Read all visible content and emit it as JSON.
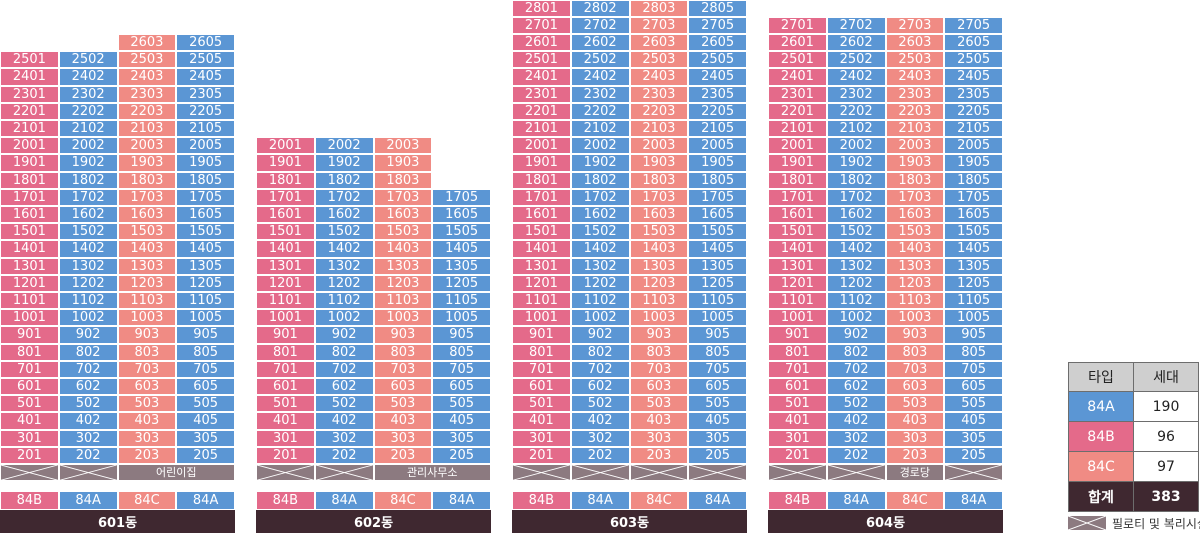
{
  "colors": {
    "84A": "#5b96d4",
    "84B": "#e46a8a",
    "84C": "#f08b84",
    "pilotis": "#8c7a80",
    "name_bar": "#3f2830"
  },
  "buildings": [
    {
      "id": "601",
      "name": "601동",
      "types": [
        "84B",
        "84A",
        "84C",
        "84A"
      ],
      "columns": [
        {
          "top_floor": 25,
          "unit_suffix": "01"
        },
        {
          "top_floor": 25,
          "unit_suffix": "02"
        },
        {
          "top_floor": 26,
          "unit_suffix": "03"
        },
        {
          "top_floor": 26,
          "unit_suffix": "05"
        }
      ],
      "ground": [
        "pilotis",
        "pilotis",
        "어린이집"
      ]
    },
    {
      "id": "602",
      "name": "602동",
      "types": [
        "84B",
        "84A",
        "84C",
        "84A"
      ],
      "columns": [
        {
          "top_floor": 20,
          "unit_suffix": "01"
        },
        {
          "top_floor": 20,
          "unit_suffix": "02"
        },
        {
          "top_floor": 20,
          "unit_suffix": "03"
        },
        {
          "top_floor": 17,
          "unit_suffix": "05"
        }
      ],
      "ground": [
        "pilotis",
        "pilotis",
        "관리사무소"
      ]
    },
    {
      "id": "603",
      "name": "603동",
      "types": [
        "84B",
        "84A",
        "84C",
        "84A"
      ],
      "columns": [
        {
          "top_floor": 28,
          "unit_suffix": "01"
        },
        {
          "top_floor": 28,
          "unit_suffix": "02"
        },
        {
          "top_floor": 28,
          "unit_suffix": "03"
        },
        {
          "top_floor": 28,
          "unit_suffix": "05"
        }
      ],
      "ground": [
        "pilotis",
        "pilotis",
        "pilotis",
        "pilotis"
      ]
    },
    {
      "id": "604",
      "name": "604동",
      "types": [
        "84B",
        "84A",
        "84C",
        "84A"
      ],
      "columns": [
        {
          "top_floor": 27,
          "unit_suffix": "01"
        },
        {
          "top_floor": 27,
          "unit_suffix": "02"
        },
        {
          "top_floor": 27,
          "unit_suffix": "03"
        },
        {
          "top_floor": 27,
          "unit_suffix": "05"
        }
      ],
      "ground": [
        "pilotis",
        "pilotis",
        "경로당",
        "pilotis"
      ]
    }
  ],
  "legend": {
    "header_type": "타입",
    "header_count": "세대",
    "rows": [
      {
        "type": "84A",
        "count": "190"
      },
      {
        "type": "84B",
        "count": "96"
      },
      {
        "type": "84C",
        "count": "97"
      }
    ],
    "total_label": "합계",
    "total_count": "383",
    "pilotis_label": "필로티 및 복리시설"
  }
}
